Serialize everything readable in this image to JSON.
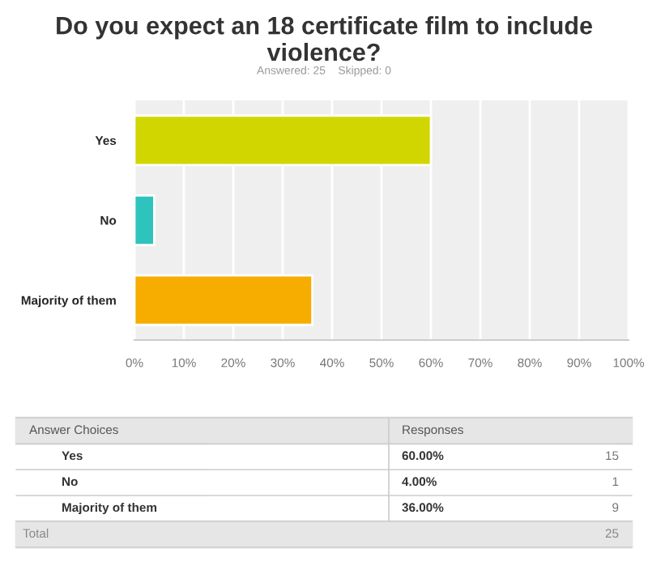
{
  "chart_data": {
    "type": "bar",
    "orientation": "horizontal",
    "title": "Do you expect an 18 certificate film to include violence?",
    "subtitle": "Answered: 25    Skipped: 0",
    "categories": [
      "Yes",
      "No",
      "Majority of them"
    ],
    "values": [
      60,
      4,
      36
    ],
    "colors": [
      "#d2d600",
      "#2ec4bd",
      "#f7ad00"
    ],
    "xlim": [
      0,
      100
    ],
    "xticks": [
      {
        "value": 0,
        "label": "0%"
      },
      {
        "value": 10,
        "label": "10%"
      },
      {
        "value": 20,
        "label": "20%"
      },
      {
        "value": 30,
        "label": "30%"
      },
      {
        "value": 40,
        "label": "40%"
      },
      {
        "value": 50,
        "label": "50%"
      },
      {
        "value": 60,
        "label": "60%"
      },
      {
        "value": 70,
        "label": "70%"
      },
      {
        "value": 80,
        "label": "80%"
      },
      {
        "value": 90,
        "label": "90%"
      },
      {
        "value": 100,
        "label": "100%"
      }
    ],
    "grid": "x",
    "annotations": [
      "Answer Choices",
      "Responses",
      "60.00%",
      "15",
      "4.00%",
      "1",
      "36.00%",
      "9",
      "Total",
      "25"
    ]
  }
}
